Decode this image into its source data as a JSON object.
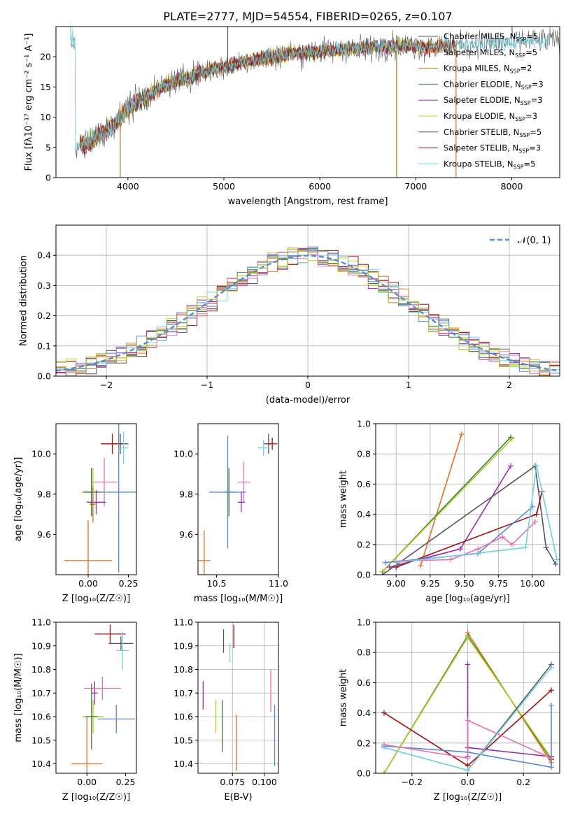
{
  "title": "PLATE=2777, MJD=54554, FIBERID=0265, z=0.107",
  "colors": {
    "chabrier_miles": "#555555",
    "salpeter_miles": "#e07020",
    "kroupa_miles": "#b07a10",
    "chabrier_elodie": "#3a7a3a",
    "salpeter_elodie": "#9a2ab0",
    "kroupa_elodie": "#d0d020",
    "chabrier_stelib": "#505050",
    "salpeter_stelib": "#a01010",
    "kroupa_stelib": "#70d0e0",
    "blue": "#5a86d8",
    "pink": "#e870b0",
    "lime": "#a8d020",
    "green": "#58a858"
  },
  "chart_data": [
    {
      "id": "spectrum",
      "type": "line",
      "title": "PLATE=2777, MJD=54554, FIBERID=0265, z=0.107",
      "xlabel": "wavelength [Angstrom, rest frame]",
      "ylabel": "Flux [fλ10⁻¹⁷ erg cm⁻² s⁻¹ A⁻¹]",
      "xlim": [
        3250,
        8500
      ],
      "ylim": [
        0,
        25
      ],
      "xticks": [
        "4000",
        "5000",
        "6000",
        "7000",
        "8000"
      ],
      "yticks": [
        "0",
        "5",
        "10",
        "15",
        "20"
      ],
      "grid": false,
      "legend_position": "lower-right",
      "legend": [
        {
          "label": "Chabrier MILES, NSSP=5",
          "color_key": "chabrier_miles"
        },
        {
          "label": "Salpeter MILES, NSSP=5",
          "color_key": "salpeter_miles"
        },
        {
          "label": "Kroupa MILES, NSSP=2",
          "color_key": "kroupa_miles"
        },
        {
          "label": "Chabrier ELODIE, NSSP=3",
          "color_key": "chabrier_elodie"
        },
        {
          "label": "Salpeter ELODIE, NSSP=3",
          "color_key": "salpeter_elodie"
        },
        {
          "label": "Kroupa ELODIE, NSSP=3",
          "color_key": "kroupa_elodie"
        },
        {
          "label": "Chabrier STELIB, NSSP=5",
          "color_key": "chabrier_stelib"
        },
        {
          "label": "Salpeter STELIB, NSSP=3",
          "color_key": "salpeter_stelib"
        },
        {
          "label": "Kroupa STELIB, NSSP=5",
          "color_key": "kroupa_stelib"
        }
      ],
      "continuum": {
        "x": [
          3450,
          3550,
          3700,
          3800,
          3900,
          4000,
          4100,
          4300,
          4500,
          4700,
          4900,
          5100,
          5300,
          5500,
          5700,
          5900,
          6100,
          6300,
          6500,
          6700,
          6900,
          7100,
          7300,
          7500,
          7700,
          7900,
          8100,
          8300,
          8450
        ],
        "y": [
          5.5,
          5.3,
          7,
          8,
          9.5,
          11.5,
          12.5,
          14.5,
          16,
          17,
          18,
          18.7,
          19.5,
          20,
          20.5,
          20.8,
          21,
          21.3,
          21.5,
          21.7,
          21.8,
          21.6,
          21.7,
          22,
          22.2,
          22.3,
          22.5,
          22.6,
          22.7
        ]
      },
      "dropouts": [
        {
          "x": 3920,
          "ymin": 0,
          "ymax": 9,
          "color_key": "kroupa_miles"
        },
        {
          "x": 6800,
          "ymin": 0,
          "ymax": 21,
          "color_key": "kroupa_miles"
        },
        {
          "x": 7420,
          "ymin": 0,
          "ymax": 22,
          "color_key": "salpeter_miles"
        },
        {
          "x": 5040,
          "ymin": 18,
          "ymax": 25,
          "color_key": "chabrier_miles"
        }
      ]
    },
    {
      "id": "residuals",
      "type": "area",
      "xlabel": "(data-model)/error",
      "ylabel": "Normed distribution",
      "xlim": [
        -2.5,
        2.5
      ],
      "ylim": [
        0,
        0.5
      ],
      "xticks": [
        "−2",
        "−1",
        "0",
        "1",
        "2"
      ],
      "yticks": [
        "0.0",
        "0.1",
        "0.2",
        "0.3",
        "0.4"
      ],
      "grid": true,
      "legend_position": "top-right",
      "legend_label": "𝒩(0, 1)",
      "bin_width": 0.1,
      "series_colors": [
        "#555555",
        "#e07020",
        "#3a7a3a",
        "#9a2ab0",
        "#d0d020",
        "#a01010",
        "#70d0e0",
        "#5a86d8",
        "#e870b0",
        "#a8d020"
      ]
    },
    {
      "id": "age-vs-z",
      "type": "scatter",
      "xlabel": "Z [log₁₀(Z/Z☉)]",
      "ylabel": "age  [log₁₀(age/yr)]",
      "xlim": [
        -0.2,
        0.3
      ],
      "ylim": [
        9.4,
        10.15
      ],
      "xticks": [
        "0.00",
        "0.25"
      ],
      "yticks": [
        "9.6",
        "9.8",
        "10.0"
      ],
      "grid": false,
      "points": [
        {
          "x": 0.2,
          "xerr": 0.05,
          "y": 10.05,
          "yerr": 0.05,
          "c": "#555555"
        },
        {
          "x": 0.15,
          "xerr": 0.07,
          "y": 10.05,
          "yerr": 0.05,
          "c": "#a01010"
        },
        {
          "x": 0.22,
          "xerr": 0.03,
          "y": 10.03,
          "yerr": 0.08,
          "c": "#70d0e0"
        },
        {
          "x": 0.1,
          "xerr": 0.08,
          "y": 9.86,
          "yerr": 0.12,
          "c": "#e870b0"
        },
        {
          "x": 0.03,
          "xerr": 0.07,
          "y": 9.81,
          "yerr": 0.12,
          "c": "#a8d020"
        },
        {
          "x": 0.02,
          "xerr": 0.05,
          "y": 9.81,
          "yerr": 0.12,
          "c": "#3a7a3a"
        },
        {
          "x": 0.19,
          "xerr": 0.12,
          "y": 9.81,
          "yerr": 0.4,
          "c": "#5a86d8"
        },
        {
          "x": 0.05,
          "xerr": 0.06,
          "y": 9.76,
          "yerr": 0.06,
          "c": "#9a2ab0"
        },
        {
          "x": 0.03,
          "xerr": 0.02,
          "y": 9.75,
          "yerr": 0.09,
          "c": "#b07a10"
        },
        {
          "x": 0.0,
          "xerr": 0.15,
          "y": 9.47,
          "yerr": 0.2,
          "c": "#e07020"
        }
      ]
    },
    {
      "id": "age-vs-mass",
      "type": "scatter",
      "xlabel": "mass [log₁₀(M/M☉)]",
      "ylabel": "",
      "xlim": [
        10.35,
        11.0
      ],
      "ylim": [
        9.4,
        10.15
      ],
      "xticks": [
        "10.5",
        "11.0"
      ],
      "yticks": [
        "9.6",
        "9.8",
        "10.0"
      ],
      "grid": false,
      "points": [
        {
          "x": 10.92,
          "xerr": 0.04,
          "y": 10.05,
          "yerr": 0.05,
          "c": "#555555"
        },
        {
          "x": 10.95,
          "xerr": 0.04,
          "y": 10.05,
          "yerr": 0.03,
          "c": "#a01010"
        },
        {
          "x": 10.88,
          "xerr": 0.05,
          "y": 10.03,
          "yerr": 0.04,
          "c": "#70d0e0"
        },
        {
          "x": 10.72,
          "xerr": 0.05,
          "y": 9.86,
          "yerr": 0.1,
          "c": "#e870b0"
        },
        {
          "x": 10.6,
          "xerr": 0.05,
          "y": 9.81,
          "yerr": 0.1,
          "c": "#a8d020"
        },
        {
          "x": 10.6,
          "xerr": 0.04,
          "y": 9.81,
          "yerr": 0.12,
          "c": "#3a7a3a"
        },
        {
          "x": 10.59,
          "xerr": 0.15,
          "y": 9.81,
          "yerr": 0.28,
          "c": "#5a86d8"
        },
        {
          "x": 10.7,
          "xerr": 0.03,
          "y": 9.76,
          "yerr": 0.05,
          "c": "#9a2ab0"
        },
        {
          "x": 10.4,
          "xerr": 0.05,
          "y": 9.47,
          "yerr": 0.15,
          "c": "#e07020"
        }
      ]
    },
    {
      "id": "weight-vs-age",
      "type": "line",
      "xlabel": "age  [log₁₀(age/yr)]",
      "ylabel": "mass weight",
      "xlim": [
        8.85,
        10.2
      ],
      "ylim": [
        0,
        1
      ],
      "xticks": [
        "9.00",
        "9.25",
        "9.50",
        "9.75",
        "10.00"
      ],
      "yticks": [
        "0.0",
        "0.2",
        "0.4",
        "0.6",
        "0.8",
        "1.0"
      ],
      "grid": true,
      "series": [
        {
          "c": "#e07020",
          "x": [
            9.18,
            9.48
          ],
          "y": [
            0.06,
            0.93
          ]
        },
        {
          "c": "#3a7a3a",
          "x": [
            8.9,
            9.84
          ],
          "y": [
            0.02,
            0.91
          ]
        },
        {
          "c": "#a8d020",
          "x": [
            8.9,
            9.85
          ],
          "y": [
            0.02,
            0.9
          ]
        },
        {
          "c": "#9a2ab0",
          "x": [
            8.95,
            9.47,
            9.84
          ],
          "y": [
            0.05,
            0.17,
            0.72
          ]
        },
        {
          "c": "#555555",
          "x": [
            8.9,
            10.02,
            10.1,
            10.17
          ],
          "y": [
            0.0,
            0.72,
            0.18,
            0.07
          ]
        },
        {
          "c": "#a01010",
          "x": [
            9.0,
            10.03,
            10.07
          ],
          "y": [
            0.05,
            0.4,
            0.55
          ]
        },
        {
          "c": "#5a86d8",
          "x": [
            8.92,
            9.6,
            10.0
          ],
          "y": [
            0.08,
            0.14,
            0.45
          ]
        },
        {
          "c": "#e870b0",
          "x": [
            9.0,
            9.4,
            9.6,
            9.78,
            9.85,
            10.02
          ],
          "y": [
            0.09,
            0.1,
            0.17,
            0.25,
            0.2,
            0.35
          ]
        },
        {
          "c": "#70d0e0",
          "x": [
            9.0,
            9.95,
            10.03,
            10.18
          ],
          "y": [
            0.08,
            0.18,
            0.72,
            0.1
          ]
        }
      ]
    },
    {
      "id": "mass-vs-z",
      "type": "scatter",
      "xlabel": "Z [log₁₀(Z/Z☉)]",
      "ylabel": "mass [log₁₀(M/M☉)]",
      "xlim": [
        -0.2,
        0.32
      ],
      "ylim": [
        10.36,
        11.0
      ],
      "xticks": [
        "0.00",
        "0.25"
      ],
      "yticks": [
        "10.4",
        "10.5",
        "10.6",
        "10.7",
        "10.8",
        "10.9",
        "11.0"
      ],
      "grid": false,
      "points": [
        {
          "x": 0.15,
          "xerr": 0.1,
          "y": 10.95,
          "yerr": 0.04,
          "c": "#a01010"
        },
        {
          "x": 0.22,
          "xerr": 0.08,
          "y": 10.91,
          "yerr": 0.03,
          "c": "#555555"
        },
        {
          "x": 0.23,
          "xerr": 0.04,
          "y": 10.88,
          "yerr": 0.08,
          "c": "#70d0e0"
        },
        {
          "x": 0.05,
          "xerr": 0.02,
          "y": 10.7,
          "yerr": 0.05,
          "c": "#9a2ab0"
        },
        {
          "x": 0.1,
          "xerr": 0.12,
          "y": 10.72,
          "yerr": 0.05,
          "c": "#e870b0"
        },
        {
          "x": 0.04,
          "xerr": 0.07,
          "y": 10.6,
          "yerr": 0.07,
          "c": "#a8d020"
        },
        {
          "x": 0.03,
          "xerr": 0.04,
          "y": 10.6,
          "yerr": 0.14,
          "c": "#3a7a3a"
        },
        {
          "x": 0.19,
          "xerr": 0.12,
          "y": 10.59,
          "yerr": 0.06,
          "c": "#5a86d8"
        },
        {
          "x": 0.0,
          "xerr": 0.1,
          "y": 10.4,
          "yerr": 0.2,
          "c": "#e07020"
        }
      ]
    },
    {
      "id": "mass-vs-ebv",
      "type": "scatter",
      "xlabel": "E(B-V)",
      "ylabel": "",
      "xlim": [
        0.048,
        0.111
      ],
      "ylim": [
        10.36,
        11.0
      ],
      "xticks": [
        "0.075",
        "0.100"
      ],
      "yticks": [
        "10.4",
        "10.5",
        "10.6",
        "10.7",
        "10.8",
        "10.9",
        "11.0"
      ],
      "grid": true,
      "points": [
        {
          "x": 0.068,
          "y": 10.92,
          "yerr": 0.05,
          "c": "#555555"
        },
        {
          "x": 0.076,
          "y": 10.94,
          "yerr": 0.05,
          "c": "#a01010"
        },
        {
          "x": 0.073,
          "y": 10.87,
          "yerr": 0.04,
          "c": "#70d0e0"
        },
        {
          "x": 0.052,
          "y": 10.69,
          "yerr": 0.06,
          "c": "#9a2ab0"
        },
        {
          "x": 0.062,
          "y": 10.6,
          "yerr": 0.07,
          "c": "#a8d020"
        },
        {
          "x": 0.067,
          "y": 10.56,
          "yerr": 0.11,
          "c": "#3a7a3a"
        },
        {
          "x": 0.078,
          "y": 10.49,
          "yerr": 0.12,
          "c": "#e07020"
        },
        {
          "x": 0.105,
          "y": 10.71,
          "yerr": 0.09,
          "c": "#e870b0"
        },
        {
          "x": 0.108,
          "y": 10.52,
          "yerr": 0.13,
          "c": "#5a86d8"
        }
      ]
    },
    {
      "id": "weight-vs-z",
      "type": "line",
      "xlabel": "Z [log₁₀(Z/Z☉)]",
      "ylabel": "mass weight",
      "xlim": [
        -0.33,
        0.33
      ],
      "ylim": [
        0,
        1
      ],
      "xticks": [
        "−0.2",
        "0.0",
        "0.2"
      ],
      "yticks": [
        "0.0",
        "0.2",
        "0.4",
        "0.6",
        "0.8",
        "1.0"
      ],
      "grid": true,
      "series": [
        {
          "c": "#e07020",
          "x": [
            0.0,
            0.3
          ],
          "y": [
            0.93,
            0.07
          ]
        },
        {
          "c": "#3a7a3a",
          "x": [
            -0.3,
            0.0,
            0.3
          ],
          "y": [
            0.0,
            0.91,
            0.09
          ]
        },
        {
          "c": "#a8d020",
          "x": [
            -0.3,
            0.0,
            0.3
          ],
          "y": [
            0.0,
            0.9,
            0.1
          ]
        },
        {
          "c": "#9a2ab0",
          "x": [
            0.0,
            0.0,
            0.0,
            0.3
          ],
          "y": [
            0.72,
            0.11,
            0.17,
            0.11
          ]
        },
        {
          "c": "#555555",
          "x": [
            0.0,
            0.3
          ],
          "y": [
            0.02,
            0.72
          ]
        },
        {
          "c": "#a01010",
          "x": [
            -0.3,
            0.0,
            0.3
          ],
          "y": [
            0.4,
            0.05,
            0.55
          ]
        },
        {
          "c": "#5a86d8",
          "x": [
            -0.3,
            0.0,
            0.3,
            0.3
          ],
          "y": [
            0.18,
            0.14,
            0.04,
            0.45
          ]
        },
        {
          "c": "#e870b0",
          "x": [
            -0.3,
            0.0,
            0.0,
            0.3
          ],
          "y": [
            0.19,
            0.1,
            0.35,
            0.1
          ]
        },
        {
          "c": "#70d0e0",
          "x": [
            -0.3,
            0.0,
            0.3
          ],
          "y": [
            0.17,
            0.02,
            0.7
          ]
        }
      ]
    }
  ]
}
